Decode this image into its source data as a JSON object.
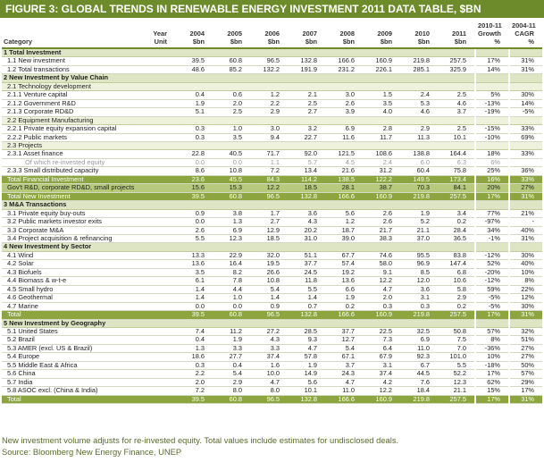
{
  "title": "FIGURE 3: GLOBAL TRENDS IN RENEWABLE ENERGY INVESTMENT 2011 DATA TABLE, $BN",
  "header": {
    "category": "Category",
    "year_unit": [
      "Year",
      "Unit"
    ],
    "cols": [
      [
        "2004",
        "$bn"
      ],
      [
        "2005",
        "$bn"
      ],
      [
        "2006",
        "$bn"
      ],
      [
        "2007",
        "$bn"
      ],
      [
        "2008",
        "$bn"
      ],
      [
        "2009",
        "$bn"
      ],
      [
        "2010",
        "$bn"
      ],
      [
        "2011",
        "$bn"
      ],
      [
        "2010-11",
        "Growth",
        "%"
      ],
      [
        "2004-11",
        "CAGR",
        "%"
      ]
    ]
  },
  "rows": [
    {
      "type": "sec",
      "label": "1 Total Investment"
    },
    {
      "type": "data",
      "label": "1.1 New investment",
      "v": [
        "39.5",
        "60.8",
        "96.5",
        "132.8",
        "166.6",
        "160.9",
        "219.8",
        "257.5",
        "17%",
        "31%"
      ]
    },
    {
      "type": "data",
      "label": "1.2 Total transactions",
      "v": [
        "48.6",
        "85.2",
        "132.2",
        "191.9",
        "231.2",
        "226.1",
        "285.1",
        "325.9",
        "14%",
        "31%"
      ]
    },
    {
      "type": "sec",
      "label": "2 New Investment by Value Chain"
    },
    {
      "type": "sub",
      "label": "2.1 Technology development"
    },
    {
      "type": "data",
      "label": "2.1.1 Venture capital",
      "v": [
        "0.4",
        "0.6",
        "1.2",
        "2.1",
        "3.0",
        "1.5",
        "2.4",
        "2.5",
        "5%",
        "30%"
      ]
    },
    {
      "type": "data",
      "label": "2.1.2 Government R&D",
      "v": [
        "1.9",
        "2.0",
        "2.2",
        "2.5",
        "2.6",
        "3.5",
        "5.3",
        "4.6",
        "-13%",
        "14%"
      ]
    },
    {
      "type": "data",
      "label": "2.1.3 Corporate RD&D",
      "v": [
        "5.1",
        "2.5",
        "2.9",
        "2.7",
        "3.9",
        "4.0",
        "4.6",
        "3.7",
        "-19%",
        "-5%"
      ]
    },
    {
      "type": "sub",
      "label": "2.2 Equipment Manufacturing"
    },
    {
      "type": "data",
      "label": "2.2.1 Private equity expansion capital",
      "v": [
        "0.3",
        "1.0",
        "3.0",
        "3.2",
        "6.9",
        "2.8",
        "2.9",
        "2.5",
        "-15%",
        "33%"
      ]
    },
    {
      "type": "data",
      "label": "2.2.2 Public markets",
      "v": [
        "0.3",
        "3.5",
        "9.4",
        "22.7",
        "11.6",
        "11.7",
        "11.3",
        "10.1",
        "-10%",
        "69%"
      ]
    },
    {
      "type": "sub",
      "label": "2.3 Projects"
    },
    {
      "type": "data",
      "label": "2.3.1 Asset finance",
      "v": [
        "22.8",
        "40.5",
        "71.7",
        "92.0",
        "121.5",
        "108.6",
        "138.8",
        "164.4",
        "18%",
        "33%"
      ]
    },
    {
      "type": "note",
      "label": "Of which re-invested equity",
      "v": [
        "0.0",
        "0.0",
        "1.1",
        "5.7",
        "4.5",
        "2.4",
        "6.0",
        "6.3",
        "6%",
        ""
      ]
    },
    {
      "type": "data",
      "label": "2.3.3 Small distributed capacity",
      "v": [
        "8.6",
        "10.8",
        "7.2",
        "13.4",
        "21.6",
        "31.2",
        "60.4",
        "75.8",
        "25%",
        "36%"
      ]
    },
    {
      "type": "total",
      "label": "Total Financial Investment",
      "v": [
        "23.6",
        "45.5",
        "84.3",
        "114.2",
        "138.5",
        "122.2",
        "149.5",
        "173.4",
        "16%",
        "33%"
      ]
    },
    {
      "type": "total2",
      "label": "Gov't R&D, corporate RD&D, small projects",
      "v": [
        "15.6",
        "15.3",
        "12.2",
        "18.5",
        "28.1",
        "38.7",
        "70.3",
        "84.1",
        "20%",
        "27%"
      ]
    },
    {
      "type": "total",
      "label": "Total New Investment",
      "v": [
        "39.5",
        "60.8",
        "96.5",
        "132.8",
        "166.6",
        "160.9",
        "219.8",
        "257.5",
        "17%",
        "31%"
      ]
    },
    {
      "type": "sec",
      "label": "3 M&A Transactions"
    },
    {
      "type": "data",
      "label": "3.1 Private equity buy-outs",
      "v": [
        "0.9",
        "3.8",
        "1.7",
        "3.6",
        "5.6",
        "2.6",
        "1.9",
        "3.4",
        "77%",
        "21%"
      ]
    },
    {
      "type": "data",
      "label": "3.2 Public markets investor exits",
      "v": [
        "0.0",
        "1.3",
        "2.7",
        "4.3",
        "1.2",
        "2.6",
        "5.2",
        "0.2",
        "-97%",
        "-"
      ]
    },
    {
      "type": "data",
      "label": "3.3 Corporate M&A",
      "v": [
        "2.6",
        "6.9",
        "12.9",
        "20.2",
        "18.7",
        "21.7",
        "21.1",
        "28.4",
        "34%",
        "40%"
      ]
    },
    {
      "type": "data",
      "label": "3.4 Project acquisition & refinancing",
      "v": [
        "5.5",
        "12.3",
        "18.5",
        "31.0",
        "39.0",
        "38.3",
        "37.0",
        "36.5",
        "-1%",
        "31%"
      ]
    },
    {
      "type": "sec",
      "label": "4 New Investment by Sector"
    },
    {
      "type": "data",
      "label": "4.1 Wind",
      "v": [
        "13.3",
        "22.9",
        "32.0",
        "51.1",
        "67.7",
        "74.6",
        "95.5",
        "83.8",
        "-12%",
        "30%"
      ]
    },
    {
      "type": "data",
      "label": "4.2 Solar",
      "v": [
        "13.6",
        "16.4",
        "19.5",
        "37.7",
        "57.4",
        "58.0",
        "96.9",
        "147.4",
        "52%",
        "40%"
      ]
    },
    {
      "type": "data",
      "label": "4.3 Biofuels",
      "v": [
        "3.5",
        "8.2",
        "26.6",
        "24.5",
        "19.2",
        "9.1",
        "8.5",
        "6.8",
        "-20%",
        "10%"
      ]
    },
    {
      "type": "data",
      "label": "4.4 Biomass & w-t-e",
      "v": [
        "6.1",
        "7.8",
        "10.8",
        "11.8",
        "13.6",
        "12.2",
        "12.0",
        "10.6",
        "-12%",
        "8%"
      ]
    },
    {
      "type": "data",
      "label": "4.5 Small hydro",
      "v": [
        "1.4",
        "4.4",
        "5.4",
        "5.5",
        "6.6",
        "4.7",
        "3.6",
        "5.8",
        "59%",
        "22%"
      ]
    },
    {
      "type": "data",
      "label": "4.6 Geothermal",
      "v": [
        "1.4",
        "1.0",
        "1.4",
        "1.4",
        "1.9",
        "2.0",
        "3.1",
        "2.9",
        "-5%",
        "12%"
      ]
    },
    {
      "type": "data",
      "label": "4.7 Marine",
      "v": [
        "0.0",
        "0.0",
        "0.9",
        "0.7",
        "0.2",
        "0.3",
        "0.3",
        "0.2",
        "-5%",
        "30%"
      ]
    },
    {
      "type": "total",
      "label": "Total",
      "v": [
        "39.5",
        "60.8",
        "96.5",
        "132.8",
        "166.6",
        "160.9",
        "219.8",
        "257.5",
        "17%",
        "31%"
      ]
    },
    {
      "type": "sec",
      "label": "5 New Investment by Geography"
    },
    {
      "type": "data",
      "label": "5.1 United States",
      "v": [
        "7.4",
        "11.2",
        "27.2",
        "28.5",
        "37.7",
        "22.5",
        "32.5",
        "50.8",
        "57%",
        "32%"
      ]
    },
    {
      "type": "data",
      "label": "5.2 Brazil",
      "v": [
        "0.4",
        "1.9",
        "4.3",
        "9.3",
        "12.7",
        "7.3",
        "6.9",
        "7.5",
        "8%",
        "51%"
      ]
    },
    {
      "type": "data",
      "label": "5.3 AMER (excl. US & Brazil)",
      "v": [
        "1.3",
        "3.3",
        "3.3",
        "4.7",
        "5.4",
        "6.4",
        "11.0",
        "7.0",
        "-36%",
        "27%"
      ]
    },
    {
      "type": "data",
      "label": "5.4 Europe",
      "v": [
        "18.6",
        "27.7",
        "37.4",
        "57.8",
        "67.1",
        "67.9",
        "92.3",
        "101.0",
        "10%",
        "27%"
      ]
    },
    {
      "type": "data",
      "label": "5.5 Middle East & Africa",
      "v": [
        "0.3",
        "0.4",
        "1.6",
        "1.9",
        "3.7",
        "3.1",
        "6.7",
        "5.5",
        "-18%",
        "50%"
      ]
    },
    {
      "type": "data",
      "label": "5.6 China",
      "v": [
        "2.2",
        "5.4",
        "10.0",
        "14.9",
        "24.3",
        "37.4",
        "44.5",
        "52.2",
        "17%",
        "57%"
      ]
    },
    {
      "type": "data",
      "label": "5.7 India",
      "v": [
        "2.0",
        "2.9",
        "4.7",
        "5.6",
        "4.7",
        "4.2",
        "7.6",
        "12.3",
        "62%",
        "29%"
      ]
    },
    {
      "type": "data",
      "label": "5.8 ASOC excl. (China & India)",
      "v": [
        "7.2",
        "8.0",
        "8.0",
        "10.1",
        "11.0",
        "12.2",
        "18.4",
        "21.1",
        "15%",
        "17%"
      ]
    },
    {
      "type": "total",
      "label": "Total",
      "v": [
        "39.5",
        "60.8",
        "96.5",
        "132.8",
        "166.6",
        "160.9",
        "219.8",
        "257.5",
        "17%",
        "31%"
      ]
    }
  ],
  "footer": {
    "note": "New investment volume adjusts for re-invested equity. Total values include estimates for undisclosed deals.",
    "source": "Source: Bloomberg New Energy Finance, UNEP"
  },
  "colors": {
    "brand_green": "#6d8b2a",
    "section_bg": "#dde5c4",
    "total_bg": "#8ca53f"
  }
}
